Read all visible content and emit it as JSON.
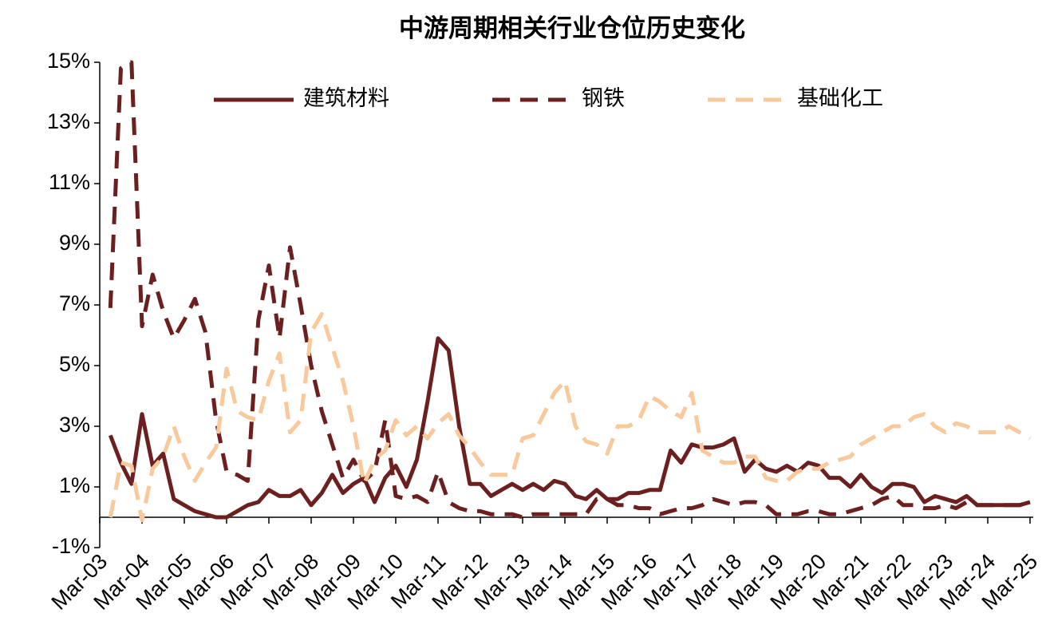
{
  "chart_data": {
    "type": "line",
    "title": "中游周期相关行业仓位历史变化",
    "categories": [
      "Mar-03",
      null,
      null,
      null,
      "Mar-04",
      null,
      null,
      null,
      "Mar-05",
      null,
      null,
      null,
      "Mar-06",
      null,
      null,
      null,
      "Mar-07",
      null,
      null,
      null,
      "Mar-08",
      null,
      null,
      null,
      "Mar-09",
      null,
      null,
      null,
      "Mar-10",
      null,
      null,
      null,
      "Mar-11",
      null,
      null,
      null,
      "Mar-12",
      null,
      null,
      null,
      "Mar-13",
      null,
      null,
      null,
      "Mar-14",
      null,
      null,
      null,
      "Mar-15",
      null,
      null,
      null,
      "Mar-16",
      null,
      null,
      null,
      "Mar-17",
      null,
      null,
      null,
      "Mar-18",
      null,
      null,
      null,
      "Mar-19",
      null,
      null,
      null,
      "Mar-20",
      null,
      null,
      null,
      "Mar-21",
      null,
      null,
      null,
      "Mar-22",
      null,
      null,
      null,
      "Mar-23",
      null,
      null,
      null,
      "Mar-24",
      null,
      null,
      null,
      "Mar-25"
    ],
    "series": [
      {
        "name": "建筑材料",
        "color": "#6b1f1f",
        "style": "solid",
        "values": [
          null,
          2.7,
          1.8,
          1.1,
          3.4,
          1.7,
          2.1,
          0.6,
          0.4,
          0.2,
          0.1,
          0.0,
          0.0,
          0.2,
          0.4,
          0.5,
          0.9,
          0.7,
          0.7,
          0.9,
          0.4,
          0.8,
          1.4,
          0.8,
          1.1,
          1.3,
          0.5,
          1.3,
          1.7,
          1.0,
          1.9,
          3.8,
          5.9,
          5.5,
          3.0,
          1.1,
          1.1,
          0.7,
          0.9,
          1.1,
          0.9,
          1.1,
          0.9,
          1.2,
          1.1,
          0.7,
          0.6,
          0.9,
          0.6,
          0.6,
          0.8,
          0.8,
          0.9,
          0.9,
          2.2,
          1.8,
          2.4,
          2.3,
          2.3,
          2.4,
          2.6,
          1.5,
          1.9,
          1.6,
          1.5,
          1.7,
          1.5,
          1.8,
          1.7,
          1.3,
          1.3,
          1.0,
          1.4,
          1.0,
          0.8,
          1.1,
          1.1,
          1.0,
          0.5,
          0.7,
          0.6,
          0.5,
          0.7,
          0.4,
          0.4,
          0.4,
          0.4,
          0.4,
          0.5
        ]
      },
      {
        "name": "钢铁",
        "color": "#6b1f1f",
        "style": "dashed",
        "values": [
          null,
          6.9,
          14.8,
          15.0,
          6.3,
          8.0,
          6.8,
          5.9,
          6.5,
          7.2,
          6.1,
          3.2,
          1.5,
          1.4,
          1.2,
          6.5,
          8.3,
          5.9,
          8.9,
          7.0,
          5.0,
          3.5,
          2.4,
          1.3,
          1.9,
          1.2,
          1.5,
          3.2,
          0.7,
          0.6,
          0.7,
          0.5,
          1.5,
          0.5,
          0.3,
          0.2,
          0.2,
          0.1,
          0.1,
          0.1,
          0.0,
          0.1,
          0.1,
          0.1,
          0.1,
          0.1,
          0.1,
          0.6,
          0.6,
          0.4,
          0.4,
          0.3,
          0.3,
          0.1,
          0.2,
          0.3,
          0.3,
          0.4,
          0.6,
          0.5,
          0.4,
          0.5,
          0.5,
          0.4,
          0.1,
          0.1,
          0.1,
          0.2,
          0.2,
          0.1,
          0.1,
          0.2,
          0.3,
          0.4,
          0.6,
          0.7,
          0.4,
          0.4,
          0.3,
          0.3,
          0.4,
          0.3,
          0.5,
          0.4,
          0.4,
          0.4,
          0.4,
          0.4,
          0.5
        ]
      },
      {
        "name": "基础化工",
        "color": "#f9c89b",
        "style": "dashed",
        "values": [
          null,
          0.0,
          1.8,
          1.7,
          -0.1,
          1.6,
          2.0,
          3.0,
          2.0,
          1.2,
          1.8,
          2.3,
          4.9,
          3.5,
          3.3,
          3.2,
          4.5,
          5.4,
          2.8,
          3.2,
          6.1,
          6.7,
          5.6,
          4.5,
          3.0,
          1.1,
          1.9,
          2.2,
          3.2,
          2.7,
          3.0,
          2.6,
          3.1,
          3.4,
          2.7,
          2.3,
          1.8,
          1.4,
          1.4,
          1.4,
          2.6,
          2.7,
          3.4,
          4.1,
          4.5,
          3.0,
          2.5,
          2.4,
          2.1,
          3.0,
          3.0,
          3.2,
          4.0,
          3.8,
          3.5,
          3.3,
          4.1,
          2.2,
          2.0,
          1.8,
          1.8,
          2.0,
          2.0,
          1.3,
          1.2,
          1.2,
          1.5,
          1.6,
          1.6,
          1.8,
          1.9,
          2.0,
          2.4,
          2.6,
          2.8,
          3.0,
          3.0,
          3.3,
          3.4,
          3.0,
          2.8,
          3.1,
          3.0,
          2.8,
          2.8,
          2.8,
          3.0,
          2.8,
          2.6
        ]
      }
    ],
    "ylim": [
      -1,
      15
    ],
    "yticks": [
      {
        "value": -1,
        "label": "-1%"
      },
      {
        "value": 1,
        "label": "1%"
      },
      {
        "value": 3,
        "label": "3%"
      },
      {
        "value": 5,
        "label": "5%"
      },
      {
        "value": 7,
        "label": "7%"
      },
      {
        "value": 9,
        "label": "9%"
      },
      {
        "value": 11,
        "label": "11%"
      },
      {
        "value": 13,
        "label": "13%"
      },
      {
        "value": 15,
        "label": "15%"
      }
    ],
    "grid": false,
    "legend": "top"
  }
}
